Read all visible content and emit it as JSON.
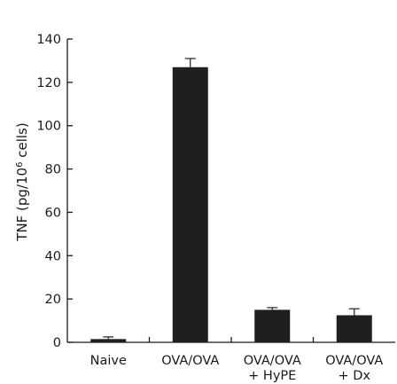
{
  "chart_data": {
    "type": "bar",
    "title": "",
    "ylabel": "TNF (pg/10",
    "ylabel_superscript": "6",
    "ylabel_suffix": " cells)",
    "xlabel": "",
    "ylim": [
      0,
      140
    ],
    "yticks": [
      "0",
      "20",
      "40",
      "60",
      "80",
      "100",
      "120",
      "140"
    ],
    "categories": [
      [
        "Naive"
      ],
      [
        "OVA/OVA"
      ],
      [
        "OVA/OVA",
        "+ HyPE"
      ],
      [
        "OVA/OVA",
        "+ Dx"
      ]
    ],
    "values": [
      1.5,
      127,
      15,
      12.5
    ],
    "errors": [
      1.0,
      4.0,
      1.0,
      3.0
    ],
    "bar_color": "#1f1f1f",
    "grid": false,
    "legend": "none"
  }
}
